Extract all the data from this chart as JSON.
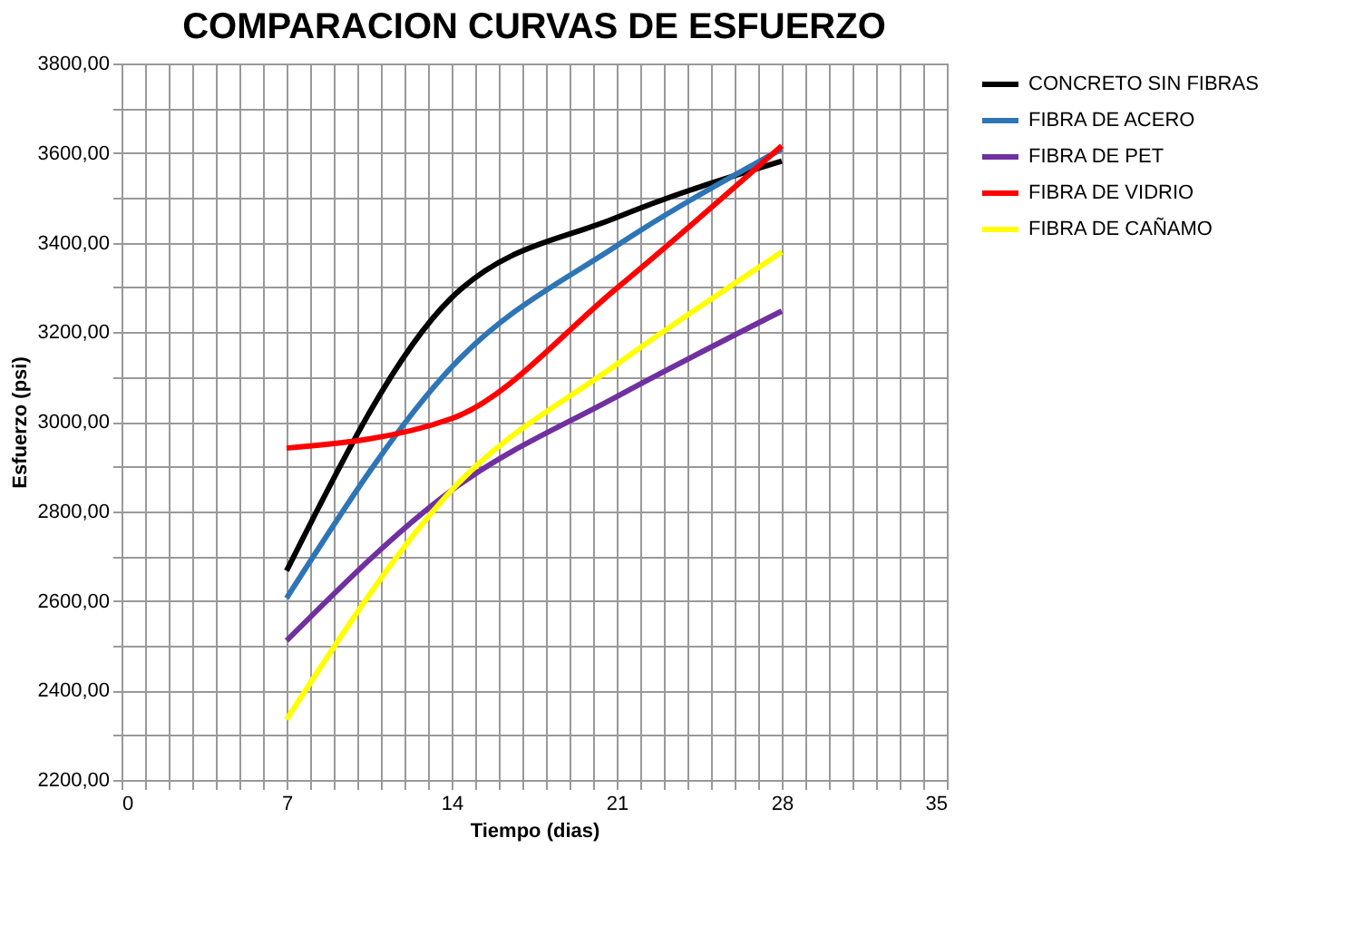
{
  "chart_data": {
    "type": "line",
    "title": "COMPARACION CURVAS DE ESFUERZO",
    "xlabel": "Tiempo (dias)",
    "ylabel": "Esfuerzo (psi)",
    "x": [
      7,
      14,
      21,
      28
    ],
    "series": [
      {
        "name": "CONCRETO SIN FIBRAS",
        "color": "#000000",
        "values": [
          2667,
          3277,
          3456,
          3582
        ]
      },
      {
        "name": "FIBRA DE ACERO",
        "color": "#2e75b6",
        "values": [
          2606,
          3122,
          3393,
          3609
        ]
      },
      {
        "name": "FIBRA DE PET",
        "color": "#7030a0",
        "values": [
          2511,
          2847,
          3056,
          3247
        ]
      },
      {
        "name": "FIBRA DE VIDRIO",
        "color": "#ff0000",
        "values": [
          2941,
          3007,
          3298,
          3616
        ]
      },
      {
        "name": "FIBRA DE CAÑAMO",
        "color": "#ffff00",
        "values": [
          2335,
          2847,
          3128,
          3379
        ]
      }
    ],
    "xlim": [
      0,
      35
    ],
    "xticks": [
      0,
      {
        "value": 1,
        "label": null
      },
      {
        "value": 2,
        "label": null
      },
      {
        "value": 3,
        "label": null
      },
      {
        "value": 4,
        "label": null
      },
      {
        "value": 5,
        "label": null
      },
      {
        "value": 6,
        "label": null
      },
      7,
      {
        "value": 8,
        "label": null
      },
      {
        "value": 9,
        "label": null
      },
      {
        "value": 10,
        "label": null
      },
      {
        "value": 11,
        "label": null
      },
      {
        "value": 12,
        "label": null
      },
      {
        "value": 13,
        "label": null
      },
      14,
      {
        "value": 15,
        "label": null
      },
      {
        "value": 16,
        "label": null
      },
      {
        "value": 17,
        "label": null
      },
      {
        "value": 18,
        "label": null
      },
      {
        "value": 19,
        "label": null
      },
      {
        "value": 20,
        "label": null
      },
      21,
      {
        "value": 22,
        "label": null
      },
      {
        "value": 23,
        "label": null
      },
      {
        "value": 24,
        "label": null
      },
      {
        "value": 25,
        "label": null
      },
      {
        "value": 26,
        "label": null
      },
      {
        "value": 27,
        "label": null
      },
      28,
      {
        "value": 29,
        "label": null
      },
      {
        "value": 30,
        "label": null
      },
      {
        "value": 31,
        "label": null
      },
      {
        "value": 32,
        "label": null
      },
      {
        "value": 33,
        "label": null
      },
      {
        "value": 34,
        "label": null
      },
      35
    ],
    "ylim": [
      2200,
      3800
    ],
    "yticks": [
      {
        "value": 2200,
        "label": "2200,00"
      },
      {
        "value": 2300,
        "label": null
      },
      {
        "value": 2400,
        "label": "2400,00"
      },
      {
        "value": 2500,
        "label": null
      },
      {
        "value": 2600,
        "label": "2600,00"
      },
      {
        "value": 2700,
        "label": null
      },
      {
        "value": 2800,
        "label": "2800,00"
      },
      {
        "value": 2900,
        "label": null
      },
      {
        "value": 3000,
        "label": "3000,00"
      },
      {
        "value": 3100,
        "label": null
      },
      {
        "value": 3200,
        "label": "3200,00"
      },
      {
        "value": 3300,
        "label": null
      },
      {
        "value": 3400,
        "label": "3400,00"
      },
      {
        "value": 3500,
        "label": null
      },
      {
        "value": 3600,
        "label": "3600,00"
      },
      {
        "value": 3700,
        "label": null
      },
      {
        "value": 3800,
        "label": "3800,00"
      }
    ],
    "grid": true,
    "legend": "right",
    "marker": "none",
    "line_style": "solid"
  }
}
